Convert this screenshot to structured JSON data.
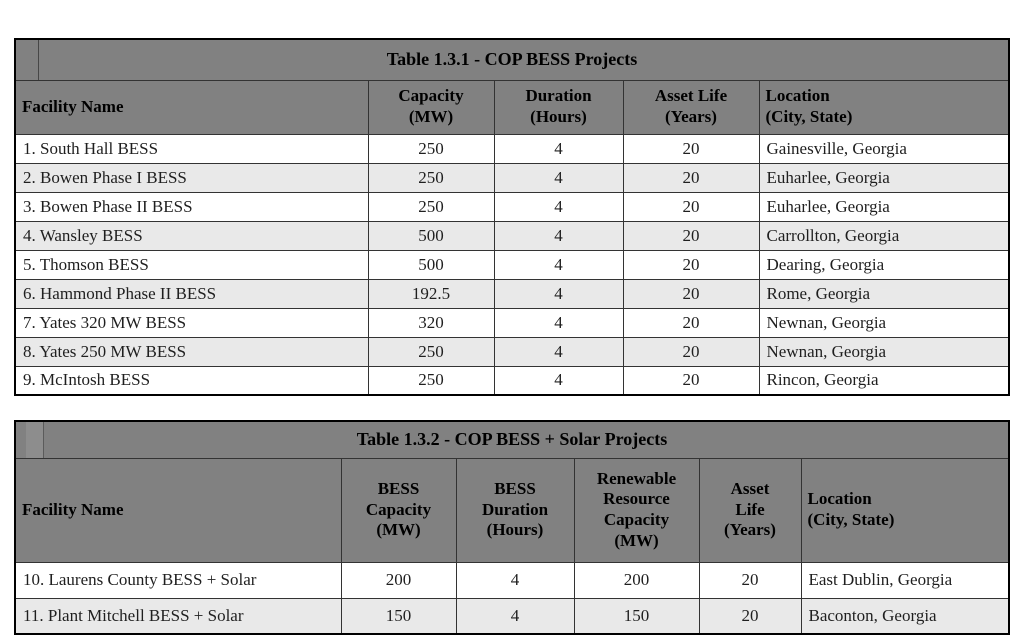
{
  "colors": {
    "header-bg": "#818181",
    "stripe-bg": "#e9e9e9",
    "grid-line": "#333333",
    "outer-line": "#000000",
    "text": "#1f1f1f"
  },
  "tables": [
    {
      "title": "Table 1.3.1 - COP BESS Projects",
      "columns": [
        {
          "label": "Facility Name",
          "name": "facility-name",
          "align": "left"
        },
        {
          "label": "Capacity\n(MW)",
          "name": "capacity-mw",
          "align": "center"
        },
        {
          "label": "Duration\n(Hours)",
          "name": "duration-hours",
          "align": "center"
        },
        {
          "label": "Asset Life\n(Years)",
          "name": "asset-life-years",
          "align": "center"
        },
        {
          "label": "Location\n(City, State)",
          "name": "location",
          "align": "left"
        }
      ],
      "rows": [
        [
          "1. South Hall BESS",
          "250",
          "4",
          "20",
          "Gainesville, Georgia"
        ],
        [
          "2. Bowen Phase I BESS",
          "250",
          "4",
          "20",
          "Euharlee, Georgia"
        ],
        [
          "3. Bowen Phase II BESS",
          "250",
          "4",
          "20",
          "Euharlee, Georgia"
        ],
        [
          "4. Wansley BESS",
          "500",
          "4",
          "20",
          "Carrollton, Georgia"
        ],
        [
          "5. Thomson BESS",
          "500",
          "4",
          "20",
          "Dearing, Georgia"
        ],
        [
          "6. Hammond Phase II BESS",
          "192.5",
          "4",
          "20",
          "Rome, Georgia"
        ],
        [
          "7. Yates 320 MW BESS",
          "320",
          "4",
          "20",
          "Newnan, Georgia"
        ],
        [
          "8. Yates 250 MW BESS",
          "250",
          "4",
          "20",
          "Newnan, Georgia"
        ],
        [
          "9. McIntosh BESS",
          "250",
          "4",
          "20",
          "Rincon, Georgia"
        ]
      ]
    },
    {
      "title": "Table 1.3.2 - COP BESS + Solar Projects",
      "columns": [
        {
          "label": "Facility Name",
          "name": "facility-name",
          "align": "left"
        },
        {
          "label": "BESS\nCapacity\n(MW)",
          "name": "bess-capacity-mw",
          "align": "center"
        },
        {
          "label": "BESS\nDuration\n(Hours)",
          "name": "bess-duration-hours",
          "align": "center"
        },
        {
          "label": "Renewable\nResource\nCapacity\n(MW)",
          "name": "renewable-resource-capacity-mw",
          "align": "center"
        },
        {
          "label": "Asset\nLife\n(Years)",
          "name": "asset-life-years",
          "align": "center"
        },
        {
          "label": "Location\n(City, State)",
          "name": "location",
          "align": "left"
        }
      ],
      "rows": [
        [
          "10. Laurens County BESS + Solar",
          "200",
          "4",
          "200",
          "20",
          "East Dublin, Georgia"
        ],
        [
          "11. Plant Mitchell BESS + Solar",
          "150",
          "4",
          "150",
          "20",
          "Baconton, Georgia"
        ]
      ]
    }
  ]
}
